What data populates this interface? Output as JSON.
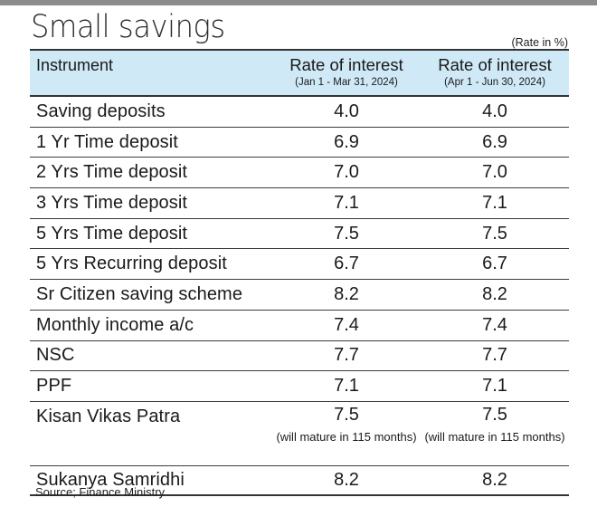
{
  "title": "Small savings",
  "unit_note": "(Rate in %)",
  "source": "Source; Finance Ministry",
  "chart_data": {
    "type": "table",
    "columns": [
      {
        "label": "Instrument",
        "sub": ""
      },
      {
        "label": "Rate of interest",
        "sub": "(Jan 1 - Mar 31, 2024)"
      },
      {
        "label": "Rate of interest",
        "sub": "(Apr 1 - Jun 30, 2024)"
      }
    ],
    "rows": [
      {
        "instrument": "Saving deposits",
        "q1": "4.0",
        "q2": "4.0"
      },
      {
        "instrument": "1 Yr Time deposit",
        "q1": "6.9",
        "q2": "6.9"
      },
      {
        "instrument": "2 Yrs Time deposit",
        "q1": "7.0",
        "q2": "7.0"
      },
      {
        "instrument": "3 Yrs Time deposit",
        "q1": "7.1",
        "q2": "7.1"
      },
      {
        "instrument": "5 Yrs Time deposit",
        "q1": "7.5",
        "q2": "7.5"
      },
      {
        "instrument": "5 Yrs Recurring deposit",
        "q1": "6.7",
        "q2": "6.7"
      },
      {
        "instrument": "Sr Citizen saving scheme",
        "q1": "8.2",
        "q2": "8.2"
      },
      {
        "instrument": "Monthly income a/c",
        "q1": "7.4",
        "q2": "7.4"
      },
      {
        "instrument": "NSC",
        "q1": "7.7",
        "q2": "7.7"
      },
      {
        "instrument": "PPF",
        "q1": "7.1",
        "q2": "7.1"
      },
      {
        "instrument": "Kisan Vikas Patra",
        "q1": "7.5",
        "q2": "7.5",
        "note_q1": "(will mature in 115 months)",
        "note_q2": "(will mature in 115 months)"
      },
      {
        "instrument": "Sukanya Samridhi",
        "q1": "8.2",
        "q2": "8.2"
      }
    ]
  }
}
